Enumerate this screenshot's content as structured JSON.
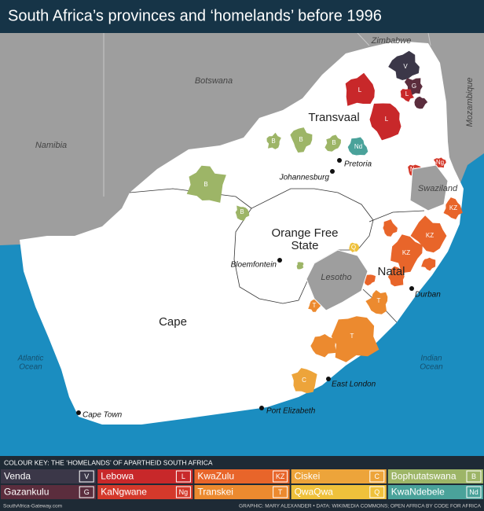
{
  "header": {
    "title": "South Africa’s provinces and ‘homelands’ before 1996"
  },
  "map": {
    "countries": [
      "Zimbabwe",
      "Botswana",
      "Namibia",
      "Mozambique",
      "Swaziland",
      "Lesotho"
    ],
    "provinces": [
      [
        "Transvaal"
      ],
      [
        "Orange Free",
        "State"
      ],
      [
        "Natal"
      ],
      [
        "Cape"
      ]
    ],
    "cities": [
      "Pretoria",
      "Johannesburg",
      "Bloemfontein",
      "Durban",
      "East London",
      "Port Elizabeth",
      "Cape Town"
    ],
    "oceans": [
      [
        "Atlantic",
        "Ocean"
      ],
      [
        "Indian",
        "Ocean"
      ]
    ]
  },
  "legend": {
    "title": "COLOUR KEY: THE ‘HOMELANDS’ OF APARTHEID SOUTH AFRICA",
    "items": [
      {
        "name": "Venda",
        "code": "V",
        "color": "#3b3748"
      },
      {
        "name": "Lebowa",
        "code": "L",
        "color": "#c8282a"
      },
      {
        "name": "KwaZulu",
        "code": "KZ",
        "color": "#e8652a"
      },
      {
        "name": "Ciskei",
        "code": "C",
        "color": "#eda43a"
      },
      {
        "name": "Bophutatswana",
        "code": "B",
        "color": "#9db567"
      },
      {
        "name": "Gazankulu",
        "code": "G",
        "color": "#5b2d3d"
      },
      {
        "name": "KaNgwane",
        "code": "Ng",
        "color": "#d4392b"
      },
      {
        "name": "Transkei",
        "code": "T",
        "color": "#ec8a2f"
      },
      {
        "name": "QwaQwa",
        "code": "Q",
        "color": "#efc13b"
      },
      {
        "name": "KwaNdebele",
        "code": "Nd",
        "color": "#4aa29a"
      }
    ]
  },
  "footer": {
    "source": "SouthAfrica-Gateway.com",
    "credit": "GRAPHIC: MARY ALEXANDER • DATA: WIKIMEDIA COMMONS; OPEN AFRICA BY CODE FOR AFRICA"
  }
}
